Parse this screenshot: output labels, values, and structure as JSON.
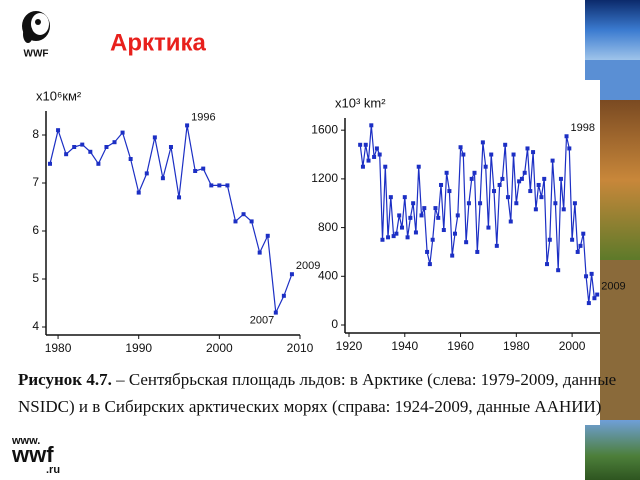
{
  "slide": {
    "title": "Арктика",
    "caption": {
      "label": "Рисунок 4.7.",
      "line1": "– Сентябрьская площадь льдов:  в Арктике (слева: 1979-2009, данные",
      "line2": "NSIDC) и в Сибирских арктических морях (справа: 1924-2009, данные ААНИИ)"
    },
    "logo_top": "WWF",
    "logo_bottom": {
      "www": "www.",
      "wwf": "wwf",
      "ru": ".ru"
    }
  },
  "chart_data": [
    {
      "type": "line",
      "y_label": "x10⁶км²",
      "color": "#1c2fc4",
      "x": [
        1979,
        1980,
        1981,
        1982,
        1983,
        1984,
        1985,
        1986,
        1987,
        1988,
        1989,
        1990,
        1991,
        1992,
        1993,
        1994,
        1995,
        1996,
        1997,
        1998,
        1999,
        2000,
        2001,
        2002,
        2003,
        2004,
        2005,
        2006,
        2007,
        2008,
        2009
      ],
      "values": [
        7.4,
        8.1,
        7.6,
        7.75,
        7.8,
        7.65,
        7.4,
        7.75,
        7.85,
        8.05,
        7.5,
        6.8,
        7.2,
        7.95,
        7.1,
        7.75,
        6.7,
        8.2,
        7.25,
        7.3,
        6.95,
        6.95,
        6.95,
        6.2,
        6.35,
        6.2,
        5.55,
        5.9,
        4.3,
        4.65,
        5.1
      ],
      "xlim": [
        1979,
        2010
      ],
      "xticks": [
        1980,
        1990,
        2000,
        2010
      ],
      "ylim": [
        4,
        8.5
      ],
      "yticks": [
        4,
        5,
        6,
        7,
        8
      ],
      "annotations": [
        {
          "text": "1996",
          "x": 1996
        },
        {
          "text": "2007",
          "x": 2007
        },
        {
          "text": "2009",
          "x": 2009
        }
      ]
    },
    {
      "type": "line",
      "y_label": "x10³ km²",
      "color": "#1c2fc4",
      "x": [
        1924,
        1925,
        1926,
        1927,
        1928,
        1929,
        1930,
        1931,
        1932,
        1933,
        1934,
        1935,
        1936,
        1937,
        1938,
        1939,
        1940,
        1941,
        1942,
        1943,
        1944,
        1945,
        1946,
        1947,
        1948,
        1949,
        1950,
        1951,
        1952,
        1953,
        1954,
        1955,
        1956,
        1957,
        1958,
        1959,
        1960,
        1961,
        1962,
        1963,
        1964,
        1965,
        1966,
        1967,
        1968,
        1969,
        1970,
        1971,
        1972,
        1973,
        1974,
        1975,
        1976,
        1977,
        1978,
        1979,
        1980,
        1981,
        1982,
        1983,
        1984,
        1985,
        1986,
        1987,
        1988,
        1989,
        1990,
        1991,
        1992,
        1993,
        1994,
        1995,
        1996,
        1997,
        1998,
        1999,
        2000,
        2001,
        2002,
        2003,
        2004,
        2005,
        2006,
        2007,
        2008,
        2009
      ],
      "values": [
        1480,
        1300,
        1480,
        1350,
        1640,
        1380,
        1450,
        1400,
        700,
        1300,
        720,
        1050,
        730,
        750,
        900,
        800,
        1050,
        720,
        880,
        1000,
        760,
        1300,
        900,
        960,
        600,
        500,
        700,
        960,
        880,
        1150,
        780,
        1250,
        1100,
        570,
        750,
        900,
        1460,
        1400,
        680,
        1000,
        1200,
        1250,
        600,
        1000,
        1500,
        1300,
        800,
        1400,
        1100,
        650,
        1150,
        1200,
        1480,
        1050,
        850,
        1400,
        1000,
        1180,
        1200,
        1250,
        1450,
        1100,
        1420,
        950,
        1150,
        1050,
        1200,
        500,
        700,
        1350,
        1000,
        450,
        1200,
        950,
        1550,
        1450,
        700,
        1000,
        600,
        650,
        750,
        400,
        180,
        420,
        220,
        250
      ],
      "xlim": [
        1920,
        2010
      ],
      "xticks": [
        1920,
        1940,
        1960,
        1980,
        2000
      ],
      "ylim": [
        0,
        1700
      ],
      "yticks": [
        0,
        400,
        800,
        1200,
        1600
      ],
      "annotations": [
        {
          "text": "1998",
          "x": 1998
        },
        {
          "text": "2009",
          "x": 2009
        }
      ]
    }
  ]
}
